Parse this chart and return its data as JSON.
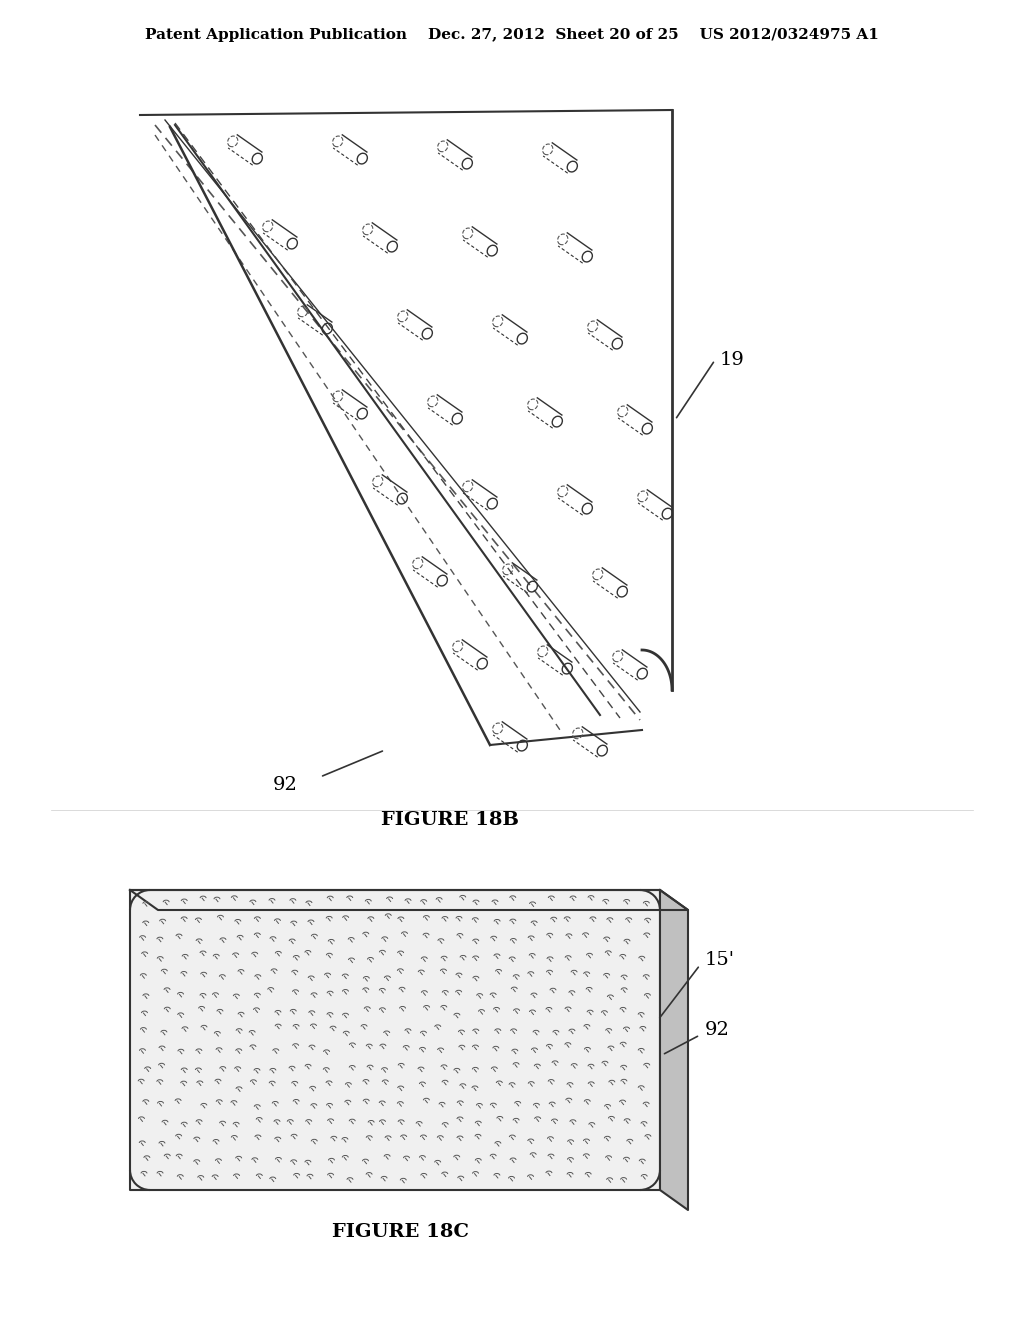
{
  "background_color": "#ffffff",
  "header_text": "Patent Application Publication    Dec. 27, 2012  Sheet 20 of 25    US 2012/0324975 A1",
  "header_fontsize": 11,
  "fig18b_label": "FIGURE 18B",
  "fig18c_label": "FIGURE 18C",
  "label_19": "19",
  "label_92_top": "92",
  "label_92_bottom": "92",
  "label_15prime": "15'",
  "fig_label_fontsize": 14,
  "annotation_fontsize": 14
}
